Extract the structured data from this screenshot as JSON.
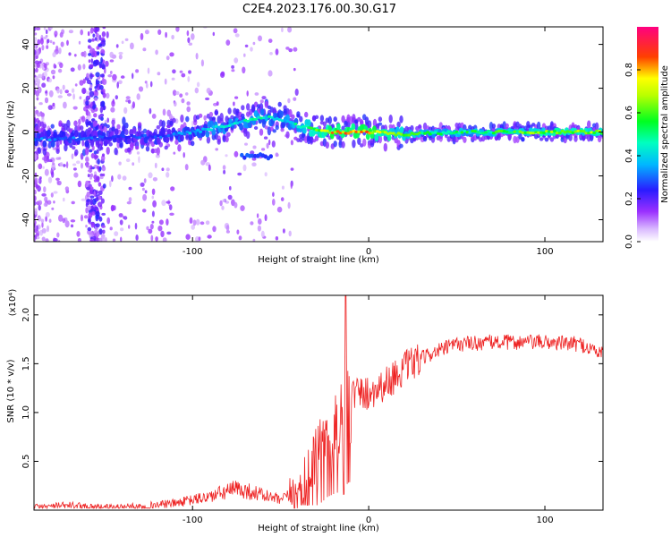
{
  "figure": {
    "title": "C2E4.2023.176.00.30.G17"
  },
  "chart_data": [
    {
      "type": "heatmap",
      "name": "spectrogram",
      "xlabel": "Height of straight line (km)",
      "ylabel": "Frequency (Hz)",
      "xlim": [
        -190,
        133
      ],
      "ylim": [
        -50,
        48
      ],
      "xticks": [
        -100,
        0,
        100
      ],
      "yticks": [
        -40,
        -20,
        0,
        20,
        40
      ],
      "colorbar": {
        "label": "Normalized spectral amplitude",
        "range": [
          0.0,
          1.0
        ],
        "ticks": [
          0.0,
          0.2,
          0.4,
          0.6,
          0.8
        ],
        "colormap": [
          "#ffffff",
          "#e0c6ff",
          "#a040ff",
          "#2020ff",
          "#00e0ff",
          "#00ff40",
          "#ffff00",
          "#ff2020",
          "#ff0080"
        ]
      },
      "ridge": {
        "x": [
          -185,
          -160,
          -140,
          -120,
          -100,
          -80,
          -60,
          -50,
          -40,
          -30,
          -20,
          0,
          20,
          60,
          100,
          133
        ],
        "frequency": [
          -3,
          -3,
          -2,
          -2,
          0,
          3,
          7,
          6,
          3,
          1,
          0,
          0,
          -1,
          0,
          0,
          0
        ],
        "amplitude": [
          0.35,
          0.3,
          0.3,
          0.3,
          0.4,
          0.45,
          0.5,
          0.45,
          0.5,
          0.7,
          0.85,
          0.85,
          0.6,
          0.55,
          0.7,
          0.7
        ]
      }
    },
    {
      "type": "line",
      "name": "snr",
      "xlabel": "Height of straight line (km)",
      "ylabel": "SNR (10 * v/v)",
      "yexponent": "(x10⁴)",
      "xlim": [
        -190,
        133
      ],
      "ylim": [
        0,
        2.2
      ],
      "xticks": [
        -100,
        0,
        100
      ],
      "yticks": [
        0.5,
        1.0,
        1.5,
        2.0
      ],
      "color": "#ee2222",
      "x": [
        -190,
        -170,
        -150,
        -130,
        -110,
        -90,
        -75,
        -65,
        -50,
        -40,
        -33,
        -28,
        -23,
        -18,
        -14,
        -12,
        -8,
        0,
        10,
        20,
        35,
        50,
        70,
        100,
        120,
        133
      ],
      "values": [
        0.03,
        0.05,
        0.03,
        0.04,
        0.07,
        0.14,
        0.22,
        0.18,
        0.1,
        0.2,
        0.4,
        0.6,
        0.8,
        0.9,
        0.85,
        1.15,
        1.2,
        1.2,
        1.3,
        1.45,
        1.6,
        1.7,
        1.72,
        1.72,
        1.7,
        1.6
      ],
      "peak": {
        "x": -13,
        "value": 2.2
      }
    }
  ]
}
